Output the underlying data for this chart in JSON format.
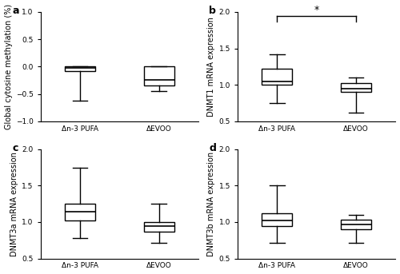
{
  "panels": [
    {
      "label": "a",
      "ylabel": "Global cytosine methylation (%)",
      "ylim": [
        -1.0,
        1.0
      ],
      "yticks": [
        -1.0,
        -0.5,
        0.0,
        0.5,
        1.0
      ],
      "boxes": [
        {
          "group": "Δn-3 PUFA",
          "q1": -0.08,
          "median": -0.03,
          "q3": 0.0,
          "whislo": -0.62,
          "whishi": 0.0
        },
        {
          "group": "ΔEVOO",
          "q1": -0.35,
          "median": -0.25,
          "q3": 0.0,
          "whislo": -0.45,
          "whishi": 0.0
        }
      ],
      "significance": null
    },
    {
      "label": "b",
      "ylabel": "DNMT1 mRNA expression",
      "ylim": [
        0.5,
        2.0
      ],
      "yticks": [
        0.5,
        1.0,
        1.5,
        2.0
      ],
      "boxes": [
        {
          "group": "Δn-3 PUFA",
          "q1": 1.0,
          "median": 1.05,
          "q3": 1.22,
          "whislo": 0.75,
          "whishi": 1.42
        },
        {
          "group": "ΔEVOO",
          "q1": 0.9,
          "median": 0.95,
          "q3": 1.02,
          "whislo": 0.62,
          "whishi": 1.1
        }
      ],
      "significance": "*"
    },
    {
      "label": "c",
      "ylabel": "DNMT3a mRNA expression",
      "ylim": [
        0.5,
        2.0
      ],
      "yticks": [
        0.5,
        1.0,
        1.5,
        2.0
      ],
      "boxes": [
        {
          "group": "Δn-3 PUFA",
          "q1": 1.02,
          "median": 1.14,
          "q3": 1.25,
          "whislo": 0.78,
          "whishi": 1.75
        },
        {
          "group": "ΔEVOO",
          "q1": 0.87,
          "median": 0.95,
          "q3": 1.0,
          "whislo": 0.72,
          "whishi": 1.25
        }
      ],
      "significance": null
    },
    {
      "label": "d",
      "ylabel": "DNMT3b mRNA expression",
      "ylim": [
        0.5,
        2.0
      ],
      "yticks": [
        0.5,
        1.0,
        1.5,
        2.0
      ],
      "boxes": [
        {
          "group": "Δn-3 PUFA",
          "q1": 0.95,
          "median": 1.02,
          "q3": 1.12,
          "whislo": 0.72,
          "whishi": 1.5
        },
        {
          "group": "ΔEVOO",
          "q1": 0.9,
          "median": 0.97,
          "q3": 1.03,
          "whislo": 0.72,
          "whishi": 1.1
        }
      ],
      "significance": null
    }
  ],
  "box_width": 0.38,
  "box_color": "white",
  "box_linecolor": "black",
  "median_color": "black",
  "whisker_color": "black",
  "cap_color": "black",
  "fontsize_label": 7.0,
  "fontsize_tick": 6.5,
  "fontsize_panel_label": 9,
  "background_color": "white"
}
